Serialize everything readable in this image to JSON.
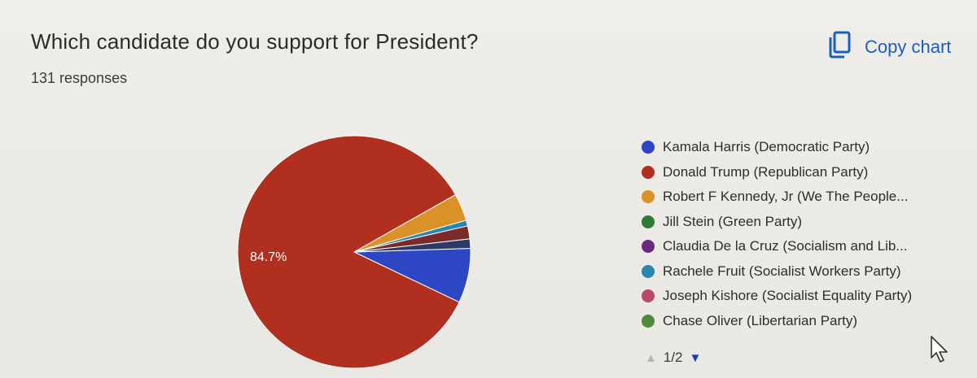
{
  "header": {
    "question": "Which candidate do you support for President?",
    "responses": "131 responses",
    "copy_label": "Copy chart",
    "copy_icon": "copy-icon"
  },
  "chart_data": {
    "type": "pie",
    "title": "",
    "total_responses": 131,
    "series": [
      {
        "name": "Kamala Harris (Democratic Party)",
        "value": 7.6,
        "color": "#2c46c4"
      },
      {
        "name": "Donald Trump (Republican Party)",
        "value": 84.7,
        "color": "#b02f1f"
      },
      {
        "name": "Robert F Kennedy, Jr (We The People...",
        "value": 3.8,
        "color": "#d99128"
      },
      {
        "name": "Jill Stein (Green Party)",
        "value": 0,
        "color": "#2f7a35"
      },
      {
        "name": "Claudia De la Cruz (Socialism and Lib...",
        "value": 0,
        "color": "#6b2b7d"
      },
      {
        "name": "Rachele Fruit (Socialist Workers Party)",
        "value": 0.8,
        "color": "#2a86b0"
      },
      {
        "name": "Joseph Kishore (Socialist Equality Party)",
        "value": 0,
        "color": "#b84a6e"
      },
      {
        "name": "Chase Oliver (Libertarian Party)",
        "value": 0,
        "color": "#4f8a38"
      },
      {
        "name": "",
        "value": 1.8,
        "color": "#7a2a28"
      },
      {
        "name": "",
        "value": 1.3,
        "color": "#2b3a66"
      }
    ],
    "labels": [
      {
        "text": "84.7%",
        "series": "Donald Trump (Republican Party)"
      }
    ],
    "legend_position": "right"
  },
  "legend": {
    "page": "1/2",
    "up_icon": "triangle-up-icon",
    "down_icon": "triangle-down-icon"
  }
}
